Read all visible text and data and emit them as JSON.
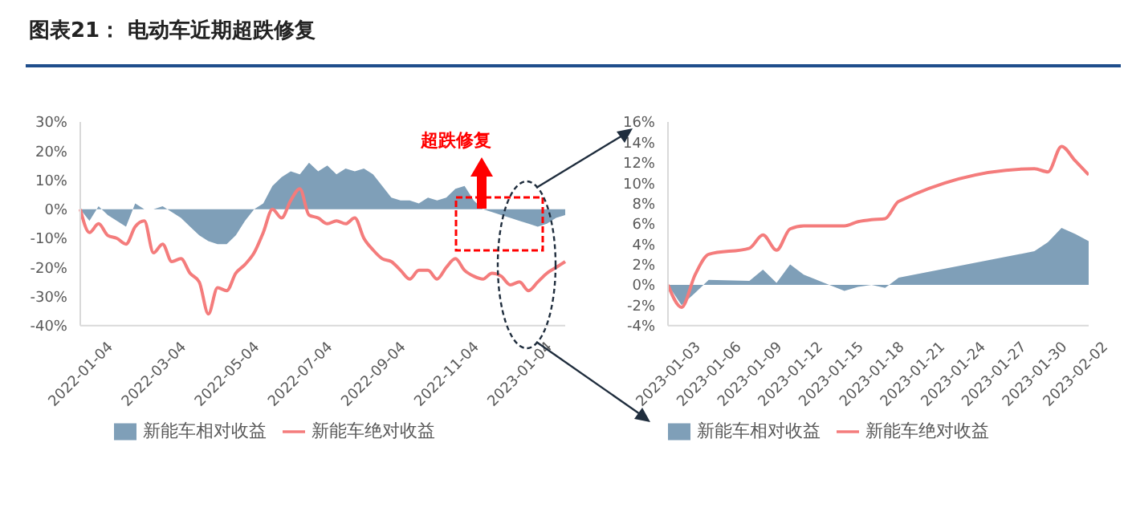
{
  "chart_data": [
    {
      "type": "area",
      "title": "图表21： 电动车近期超跌修复",
      "annotations": [
        "超跌修复"
      ],
      "categories": [
        "2022-01-04",
        null,
        null,
        null,
        null,
        null,
        null,
        null,
        "2022-03-04",
        null,
        null,
        null,
        null,
        null,
        null,
        null,
        "2022-05-04",
        null,
        null,
        null,
        null,
        null,
        null,
        null,
        "2022-07-04",
        null,
        null,
        null,
        null,
        null,
        null,
        null,
        "2022-09-04",
        null,
        null,
        null,
        null,
        null,
        null,
        null,
        "2022-11-04",
        null,
        null,
        null,
        null,
        null,
        null,
        null,
        "2023-01-04",
        null,
        null,
        null,
        null,
        null
      ],
      "series": [
        {
          "name": "新能车相对收益",
          "color": "#7f9fb8",
          "values": [
            0,
            -4,
            1,
            -2,
            -4,
            -6,
            2,
            0,
            0,
            1,
            -1,
            -3,
            -6,
            -9,
            -11,
            -12,
            -12,
            -9,
            -4,
            0,
            2,
            8,
            11,
            13,
            12,
            16,
            13,
            15,
            12,
            14,
            13,
            14,
            12,
            8,
            4,
            3,
            3,
            2,
            4,
            3,
            4,
            7,
            8,
            3,
            0,
            -1,
            -2,
            -3,
            -4,
            -5,
            -6,
            -5,
            -3,
            -2
          ]
        },
        {
          "name": "新能车绝对收益",
          "type": "line",
          "color": "#f47c7c",
          "values": [
            0,
            -8,
            -5,
            -9,
            -10,
            -12,
            -6,
            -4,
            -15,
            -12,
            -18,
            -17,
            -22,
            -25,
            -36,
            -27,
            -28,
            -22,
            -19,
            -15,
            -8,
            0,
            -3,
            3,
            7,
            -2,
            -3,
            -5,
            -4,
            -5,
            -3,
            -10,
            -14,
            -17,
            -18,
            -21,
            -24,
            -21,
            -21,
            -24,
            -20,
            -17,
            -21,
            -23,
            -24,
            -22,
            -23,
            -26,
            -25,
            -28,
            -25,
            -22,
            -20,
            -18
          ]
        }
      ],
      "ylim": [
        -40,
        30
      ],
      "yticks": [
        {
          "value": -40,
          "label": "-40%"
        },
        {
          "value": -30,
          "label": "-30%"
        },
        {
          "value": -20,
          "label": "-20%"
        },
        {
          "value": -10,
          "label": "-10%"
        },
        {
          "value": 0,
          "label": "0%"
        },
        {
          "value": 10,
          "label": "10%"
        },
        {
          "value": 20,
          "label": "20%"
        },
        {
          "value": 30,
          "label": "30%"
        }
      ],
      "legend": "bottom"
    },
    {
      "type": "area",
      "x": [
        "2023-01-03",
        "2023-01-04",
        "2023-01-05",
        "2023-01-06",
        "2023-01-09",
        "2023-01-10",
        "2023-01-11",
        "2023-01-12",
        "2023-01-13",
        "2023-01-16",
        "2023-01-17",
        "2023-01-18",
        "2023-01-19",
        "2023-01-20",
        "2023-01-30",
        "2023-01-31",
        "2023-02-01",
        "2023-02-02",
        "2023-02-03"
      ],
      "series": [
        {
          "name": "新能车相对收益",
          "color": "#7f9fb8",
          "values": [
            0,
            -2,
            -0.8,
            0.5,
            0.4,
            1.5,
            0.2,
            2,
            1,
            -0.6,
            -0.2,
            0,
            -0.3,
            0.7,
            3.3,
            4.2,
            5.6,
            5,
            4.3
          ]
        },
        {
          "name": "新能车绝对收益",
          "type": "line",
          "color": "#f47c7c",
          "values": [
            0,
            -2.2,
            1,
            3,
            3.6,
            4.9,
            3.4,
            5.5,
            5.8,
            5.8,
            6.2,
            6.4,
            6.5,
            8.2,
            11.4,
            11.1,
            13.6,
            12.2,
            10.8
          ]
        }
      ],
      "xlim": [
        "2023-01-03",
        "2023-02-03"
      ],
      "xticks": [
        "2023-01-03",
        "2023-01-06",
        "2023-01-09",
        "2023-01-12",
        "2023-01-15",
        "2023-01-18",
        "2023-01-21",
        "2023-01-24",
        "2023-01-27",
        "2023-01-30",
        "2023-02-02"
      ],
      "ylim": [
        -4,
        16
      ],
      "yticks": [
        {
          "value": -4,
          "label": "-4%"
        },
        {
          "value": -2,
          "label": "-2%"
        },
        {
          "value": 0,
          "label": "0%"
        },
        {
          "value": 2,
          "label": "2%"
        },
        {
          "value": 4,
          "label": "4%"
        },
        {
          "value": 6,
          "label": "6%"
        },
        {
          "value": 8,
          "label": "8%"
        },
        {
          "value": 10,
          "label": "10%"
        },
        {
          "value": 12,
          "label": "12%"
        },
        {
          "value": 14,
          "label": "14%"
        },
        {
          "value": 16,
          "label": "16%"
        }
      ],
      "legend": "bottom"
    }
  ]
}
